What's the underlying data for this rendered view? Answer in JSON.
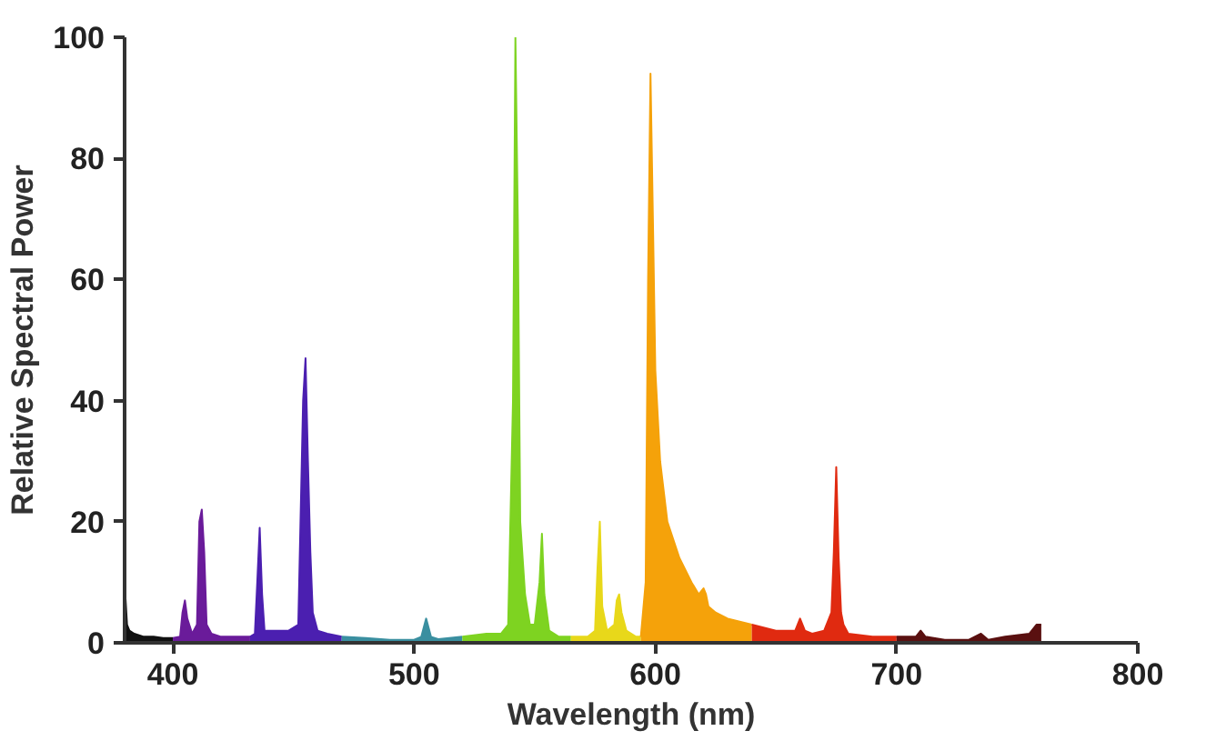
{
  "chart_data": {
    "type": "area",
    "xlabel": "Wavelength (nm)",
    "ylabel": "Relative Spectral Power",
    "xlim": [
      380,
      800
    ],
    "xticks": [
      400,
      500,
      600,
      700,
      800
    ],
    "ylim": [
      0,
      100
    ],
    "yticks": [
      0,
      20,
      40,
      60,
      80,
      100
    ],
    "grid": false,
    "series": [
      {
        "color": "#111111",
        "x": [
          380,
          381,
          382,
          384,
          388,
          392,
          396,
          400
        ],
        "values": [
          10,
          3,
          2,
          1.5,
          1,
          1,
          0.8,
          0.8
        ]
      },
      {
        "color": "#6a1b9a",
        "x": [
          400,
          403,
          404,
          405,
          406,
          408,
          410,
          411,
          412,
          413,
          414,
          416,
          420,
          425,
          430,
          432
        ],
        "values": [
          0.8,
          1,
          5,
          7,
          4,
          1.5,
          3,
          20,
          22,
          15,
          3,
          1.5,
          1,
          1,
          1,
          1
        ]
      },
      {
        "color": "#4b1fb0",
        "x": [
          432,
          434,
          435,
          436,
          437,
          438,
          442,
          448,
          452,
          454,
          455,
          456,
          457,
          458,
          460,
          464,
          470
        ],
        "values": [
          1,
          1.5,
          10,
          19,
          8,
          2,
          2,
          2,
          3,
          40,
          47,
          30,
          15,
          5,
          2,
          1.5,
          1
        ]
      },
      {
        "color": "#3a8fa0",
        "x": [
          470,
          480,
          490,
          500,
          503,
          505,
          507,
          510,
          520
        ],
        "values": [
          1,
          0.8,
          0.5,
          0.5,
          1,
          4,
          1,
          0.6,
          1
        ]
      },
      {
        "color": "#7ed321",
        "x": [
          520,
          530,
          536,
          539,
          541,
          542,
          543,
          544,
          546,
          548,
          550,
          552,
          553,
          554,
          556,
          560,
          565
        ],
        "values": [
          1,
          1.5,
          1.5,
          3,
          40,
          100,
          70,
          20,
          8,
          3,
          3,
          10,
          18,
          8,
          2,
          1,
          1
        ]
      },
      {
        "color": "#e8d81a",
        "x": [
          565,
          572,
          575,
          576,
          577,
          578,
          580,
          583,
          584,
          585,
          586,
          588,
          592,
          594
        ],
        "values": [
          1,
          1,
          2,
          12,
          20,
          6,
          2,
          3,
          7,
          8,
          5,
          2,
          1,
          1
        ]
      },
      {
        "color": "#f5a20a",
        "x": [
          594,
          596,
          597,
          598,
          599,
          600,
          602,
          605,
          610,
          615,
          618,
          620,
          621,
          622,
          625,
          630,
          635,
          640
        ],
        "values": [
          1,
          10,
          60,
          94,
          70,
          45,
          30,
          20,
          14,
          10,
          8,
          9,
          8,
          6,
          5,
          4,
          3.5,
          3
        ]
      },
      {
        "color": "#e02a10",
        "x": [
          640,
          650,
          658,
          660,
          662,
          665,
          670,
          673,
          674,
          675,
          676,
          677,
          678,
          680,
          690,
          700
        ],
        "values": [
          3,
          2,
          2,
          4,
          2,
          1.5,
          2,
          5,
          15,
          29,
          14,
          5,
          3,
          1.5,
          1,
          1
        ]
      },
      {
        "color": "#5a1010",
        "x": [
          700,
          708,
          710,
          712,
          720,
          730,
          735,
          738,
          745,
          755,
          758,
          760
        ],
        "values": [
          1,
          1,
          2,
          1,
          0.5,
          0.5,
          1.5,
          0.5,
          1,
          1.5,
          3,
          3
        ]
      }
    ]
  }
}
